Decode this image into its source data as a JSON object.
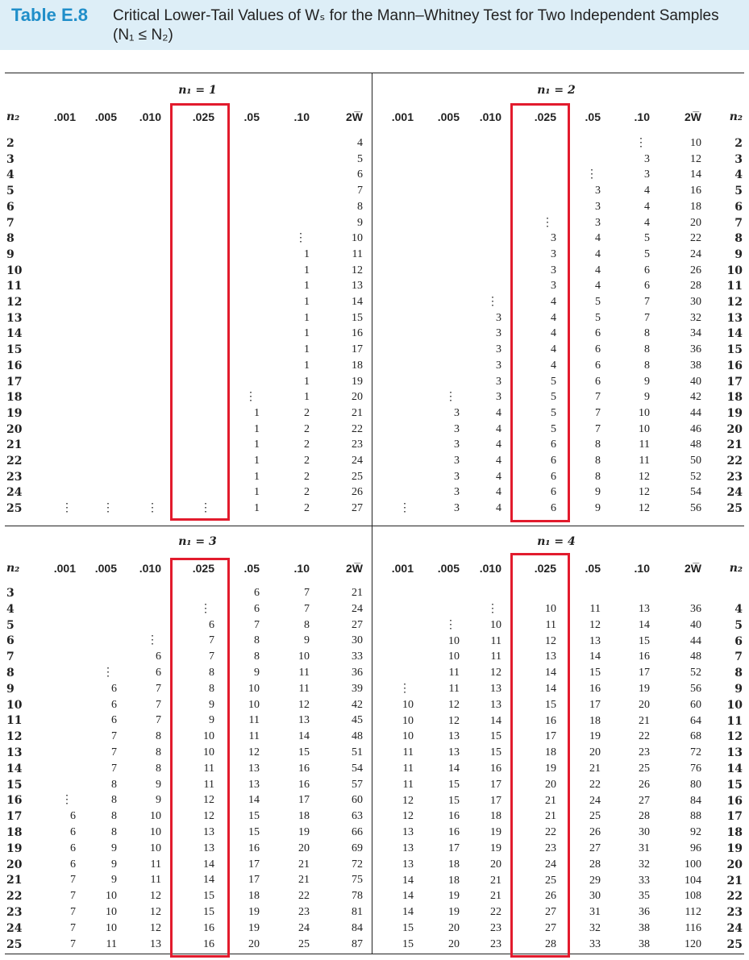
{
  "title": {
    "number": "Table E.8",
    "text": "Critical Lower-Tail Values of Wₛ for the Mann–Whitney Test for Two Independent Samples (N₁ ≤ N₂)"
  },
  "columns": [
    ".001",
    ".005",
    ".010",
    ".025",
    ".05",
    ".10",
    "2W̅"
  ],
  "n2_label": "n₂",
  "highlight": "#e21b2d",
  "panels": [
    {
      "label": "n₁ = 1",
      "rows": [
        [
          "2",
          "",
          "",
          "",
          "",
          "",
          "",
          "4"
        ],
        [
          "3",
          "",
          "",
          "",
          "",
          "",
          "",
          "5"
        ],
        [
          "4",
          "",
          "",
          "",
          "",
          "",
          "",
          "6"
        ],
        [
          "5",
          "",
          "",
          "",
          "",
          "",
          "",
          "7"
        ],
        [
          "6",
          "",
          "",
          "",
          "",
          "",
          "",
          "8"
        ],
        [
          "7",
          "",
          "",
          "",
          "",
          "",
          "",
          "9"
        ],
        [
          "8",
          "",
          "",
          "",
          "",
          "",
          "⋮",
          "10"
        ],
        [
          "9",
          "",
          "",
          "",
          "",
          "",
          "1",
          "11"
        ],
        [
          "10",
          "",
          "",
          "",
          "",
          "",
          "1",
          "12"
        ],
        [
          "11",
          "",
          "",
          "",
          "",
          "",
          "1",
          "13"
        ],
        [
          "12",
          "",
          "",
          "",
          "",
          "",
          "1",
          "14"
        ],
        [
          "13",
          "",
          "",
          "",
          "",
          "",
          "1",
          "15"
        ],
        [
          "14",
          "",
          "",
          "",
          "",
          "",
          "1",
          "16"
        ],
        [
          "15",
          "",
          "",
          "",
          "",
          "",
          "1",
          "17"
        ],
        [
          "16",
          "",
          "",
          "",
          "",
          "",
          "1",
          "18"
        ],
        [
          "17",
          "",
          "",
          "",
          "",
          "",
          "1",
          "19"
        ],
        [
          "18",
          "",
          "",
          "",
          "",
          "⋮",
          "1",
          "20"
        ],
        [
          "19",
          "",
          "",
          "",
          "",
          "1",
          "2",
          "21"
        ],
        [
          "20",
          "",
          "",
          "",
          "",
          "1",
          "2",
          "22"
        ],
        [
          "21",
          "",
          "",
          "",
          "",
          "1",
          "2",
          "23"
        ],
        [
          "22",
          "",
          "",
          "",
          "",
          "1",
          "2",
          "24"
        ],
        [
          "23",
          "",
          "",
          "",
          "",
          "1",
          "2",
          "25"
        ],
        [
          "24",
          "",
          "",
          "",
          "",
          "1",
          "2",
          "26"
        ],
        [
          "25",
          "⋮",
          "⋮",
          "⋮",
          "⋮",
          "1",
          "2",
          "27"
        ]
      ]
    },
    {
      "label": "n₁ = 2",
      "rows": [
        [
          "2",
          "",
          "",
          "",
          "",
          "",
          "⋮",
          "10"
        ],
        [
          "3",
          "",
          "",
          "",
          "",
          "",
          "3",
          "12"
        ],
        [
          "4",
          "",
          "",
          "",
          "",
          "⋮",
          "3",
          "14"
        ],
        [
          "5",
          "",
          "",
          "",
          "",
          "3",
          "4",
          "16"
        ],
        [
          "6",
          "",
          "",
          "",
          "",
          "3",
          "4",
          "18"
        ],
        [
          "7",
          "",
          "",
          "",
          "⋮",
          "3",
          "4",
          "20"
        ],
        [
          "8",
          "",
          "",
          "",
          "3",
          "4",
          "5",
          "22"
        ],
        [
          "9",
          "",
          "",
          "",
          "3",
          "4",
          "5",
          "24"
        ],
        [
          "10",
          "",
          "",
          "",
          "3",
          "4",
          "6",
          "26"
        ],
        [
          "11",
          "",
          "",
          "",
          "3",
          "4",
          "6",
          "28"
        ],
        [
          "12",
          "",
          "",
          "⋮",
          "4",
          "5",
          "7",
          "30"
        ],
        [
          "13",
          "",
          "",
          "3",
          "4",
          "5",
          "7",
          "32"
        ],
        [
          "14",
          "",
          "",
          "3",
          "4",
          "6",
          "8",
          "34"
        ],
        [
          "15",
          "",
          "",
          "3",
          "4",
          "6",
          "8",
          "36"
        ],
        [
          "16",
          "",
          "",
          "3",
          "4",
          "6",
          "8",
          "38"
        ],
        [
          "17",
          "",
          "",
          "3",
          "5",
          "6",
          "9",
          "40"
        ],
        [
          "18",
          "",
          "⋮",
          "3",
          "5",
          "7",
          "9",
          "42"
        ],
        [
          "19",
          "",
          "3",
          "4",
          "5",
          "7",
          "10",
          "44"
        ],
        [
          "20",
          "",
          "3",
          "4",
          "5",
          "7",
          "10",
          "46"
        ],
        [
          "21",
          "",
          "3",
          "4",
          "6",
          "8",
          "11",
          "48"
        ],
        [
          "22",
          "",
          "3",
          "4",
          "6",
          "8",
          "11",
          "50"
        ],
        [
          "23",
          "",
          "3",
          "4",
          "6",
          "8",
          "12",
          "52"
        ],
        [
          "24",
          "",
          "3",
          "4",
          "6",
          "9",
          "12",
          "54"
        ],
        [
          "25",
          "⋮",
          "3",
          "4",
          "6",
          "9",
          "12",
          "56"
        ]
      ]
    },
    {
      "label": "n₁ = 3",
      "rows": [
        [
          "3",
          "",
          "",
          "",
          "",
          "6",
          "7",
          "21"
        ],
        [
          "4",
          "",
          "",
          "",
          "⋮",
          "6",
          "7",
          "24"
        ],
        [
          "5",
          "",
          "",
          "",
          "6",
          "7",
          "8",
          "27"
        ],
        [
          "6",
          "",
          "",
          "⋮",
          "7",
          "8",
          "9",
          "30"
        ],
        [
          "7",
          "",
          "",
          "6",
          "7",
          "8",
          "10",
          "33"
        ],
        [
          "8",
          "",
          "⋮",
          "6",
          "8",
          "9",
          "11",
          "36"
        ],
        [
          "9",
          "",
          "6",
          "7",
          "8",
          "10",
          "11",
          "39"
        ],
        [
          "10",
          "",
          "6",
          "7",
          "9",
          "10",
          "12",
          "42"
        ],
        [
          "11",
          "",
          "6",
          "7",
          "9",
          "11",
          "13",
          "45"
        ],
        [
          "12",
          "",
          "7",
          "8",
          "10",
          "11",
          "14",
          "48"
        ],
        [
          "13",
          "",
          "7",
          "8",
          "10",
          "12",
          "15",
          "51"
        ],
        [
          "14",
          "",
          "7",
          "8",
          "11",
          "13",
          "16",
          "54"
        ],
        [
          "15",
          "",
          "8",
          "9",
          "11",
          "13",
          "16",
          "57"
        ],
        [
          "16",
          "⋮",
          "8",
          "9",
          "12",
          "14",
          "17",
          "60"
        ],
        [
          "17",
          "6",
          "8",
          "10",
          "12",
          "15",
          "18",
          "63"
        ],
        [
          "18",
          "6",
          "8",
          "10",
          "13",
          "15",
          "19",
          "66"
        ],
        [
          "19",
          "6",
          "9",
          "10",
          "13",
          "16",
          "20",
          "69"
        ],
        [
          "20",
          "6",
          "9",
          "11",
          "14",
          "17",
          "21",
          "72"
        ],
        [
          "21",
          "7",
          "9",
          "11",
          "14",
          "17",
          "21",
          "75"
        ],
        [
          "22",
          "7",
          "10",
          "12",
          "15",
          "18",
          "22",
          "78"
        ],
        [
          "23",
          "7",
          "10",
          "12",
          "15",
          "19",
          "23",
          "81"
        ],
        [
          "24",
          "7",
          "10",
          "12",
          "16",
          "19",
          "24",
          "84"
        ],
        [
          "25",
          "7",
          "11",
          "13",
          "16",
          "20",
          "25",
          "87"
        ]
      ]
    },
    {
      "label": "n₁ = 4",
      "rows": [
        [
          "4",
          "",
          "",
          "⋮",
          "10",
          "11",
          "13",
          "36"
        ],
        [
          "5",
          "",
          "⋮",
          "10",
          "11",
          "12",
          "14",
          "40"
        ],
        [
          "6",
          "",
          "10",
          "11",
          "12",
          "13",
          "15",
          "44"
        ],
        [
          "7",
          "",
          "10",
          "11",
          "13",
          "14",
          "16",
          "48"
        ],
        [
          "8",
          "",
          "11",
          "12",
          "14",
          "15",
          "17",
          "52"
        ],
        [
          "9",
          "⋮",
          "11",
          "13",
          "14",
          "16",
          "19",
          "56"
        ],
        [
          "10",
          "10",
          "12",
          "13",
          "15",
          "17",
          "20",
          "60"
        ],
        [
          "11",
          "10",
          "12",
          "14",
          "16",
          "18",
          "21",
          "64"
        ],
        [
          "12",
          "10",
          "13",
          "15",
          "17",
          "19",
          "22",
          "68"
        ],
        [
          "13",
          "11",
          "13",
          "15",
          "18",
          "20",
          "23",
          "72"
        ],
        [
          "14",
          "11",
          "14",
          "16",
          "19",
          "21",
          "25",
          "76"
        ],
        [
          "15",
          "11",
          "15",
          "17",
          "20",
          "22",
          "26",
          "80"
        ],
        [
          "16",
          "12",
          "15",
          "17",
          "21",
          "24",
          "27",
          "84"
        ],
        [
          "17",
          "12",
          "16",
          "18",
          "21",
          "25",
          "28",
          "88"
        ],
        [
          "18",
          "13",
          "16",
          "19",
          "22",
          "26",
          "30",
          "92"
        ],
        [
          "19",
          "13",
          "17",
          "19",
          "23",
          "27",
          "31",
          "96"
        ],
        [
          "20",
          "13",
          "18",
          "20",
          "24",
          "28",
          "32",
          "100"
        ],
        [
          "21",
          "14",
          "18",
          "21",
          "25",
          "29",
          "33",
          "104"
        ],
        [
          "22",
          "14",
          "19",
          "21",
          "26",
          "30",
          "35",
          "108"
        ],
        [
          "23",
          "14",
          "19",
          "22",
          "27",
          "31",
          "36",
          "112"
        ],
        [
          "24",
          "15",
          "20",
          "23",
          "27",
          "32",
          "38",
          "116"
        ],
        [
          "25",
          "15",
          "20",
          "23",
          "28",
          "33",
          "38",
          "120"
        ]
      ]
    }
  ]
}
